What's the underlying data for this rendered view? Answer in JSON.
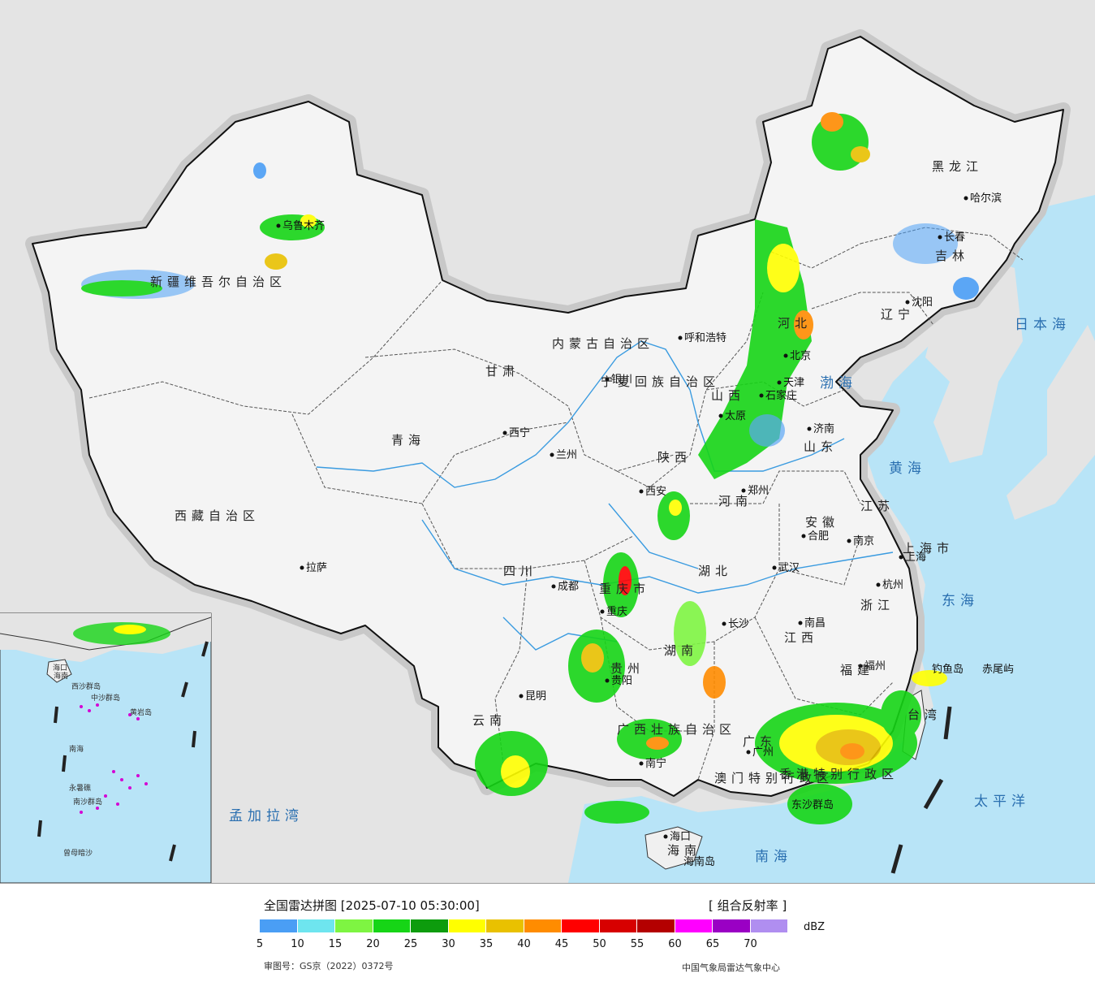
{
  "map": {
    "cities": [
      {
        "name": "乌鲁木齐"
      },
      {
        "name": "哈尔滨"
      },
      {
        "name": "长春"
      },
      {
        "name": "沈阳"
      },
      {
        "name": "呼和浩特"
      },
      {
        "name": "北京"
      },
      {
        "name": "天津"
      },
      {
        "name": "石家庄"
      },
      {
        "name": "银川"
      },
      {
        "name": "太原"
      },
      {
        "name": "济南"
      },
      {
        "name": "西宁"
      },
      {
        "name": "兰州"
      },
      {
        "name": "西安"
      },
      {
        "name": "郑州"
      },
      {
        "name": "合肥"
      },
      {
        "name": "南京"
      },
      {
        "name": "上海"
      },
      {
        "name": "拉萨"
      },
      {
        "name": "成都"
      },
      {
        "name": "武汉"
      },
      {
        "name": "杭州"
      },
      {
        "name": "重庆"
      },
      {
        "name": "长沙"
      },
      {
        "name": "南昌"
      },
      {
        "name": "福州"
      },
      {
        "name": "贵阳"
      },
      {
        "name": "昆明"
      },
      {
        "name": "南宁"
      },
      {
        "name": "广州"
      },
      {
        "name": "海口"
      }
    ],
    "provinces": [
      "新疆维吾尔自治区",
      "西藏自治区",
      "青海",
      "甘肃",
      "四川",
      "云南",
      "内蒙古自治区",
      "黑龙江",
      "吉林",
      "辽宁",
      "河北",
      "山西",
      "陕西",
      "宁夏回族自治区",
      "山东",
      "河南",
      "江苏",
      "安徽",
      "湖北",
      "湖南",
      "江西",
      "浙江",
      "福建",
      "广东",
      "广西壮族自治区",
      "贵州",
      "重庆市",
      "上海市",
      "海南",
      "台湾",
      "澳门特别行政区",
      "香港特别行政区"
    ],
    "seas": [
      "日本海",
      "渤海",
      "黄海",
      "东海",
      "太平洋",
      "南海",
      "孟加拉湾"
    ],
    "islands": [
      "钓鱼岛",
      "赤尾屿",
      "东沙群岛",
      "海南岛"
    ],
    "inset_labels": [
      "南海",
      "西沙群岛",
      "中沙群岛",
      "黄岩岛",
      "永暑礁",
      "南沙群岛",
      "曾母暗沙",
      "海口",
      "海南"
    ]
  },
  "legend": {
    "title": "全国雷达拼图 [2025-07-10 05:30:00]",
    "product": "[ 组合反射率 ]",
    "unit": "dBZ",
    "ticks": [
      "5",
      "10",
      "15",
      "20",
      "25",
      "30",
      "35",
      "40",
      "45",
      "50",
      "55",
      "60",
      "65",
      "70"
    ],
    "colors": [
      "#4a9ef5",
      "#6ee5ef",
      "#7ef542",
      "#16d516",
      "#0d9c0d",
      "#ffff00",
      "#e9c100",
      "#ff8c00",
      "#ff0000",
      "#d70000",
      "#b40000",
      "#ff00ff",
      "#9a00c4",
      "#b08ef0"
    ],
    "approval": "审图号：GS京（2022）0372号",
    "agency": "中国气象局雷达气象中心"
  }
}
